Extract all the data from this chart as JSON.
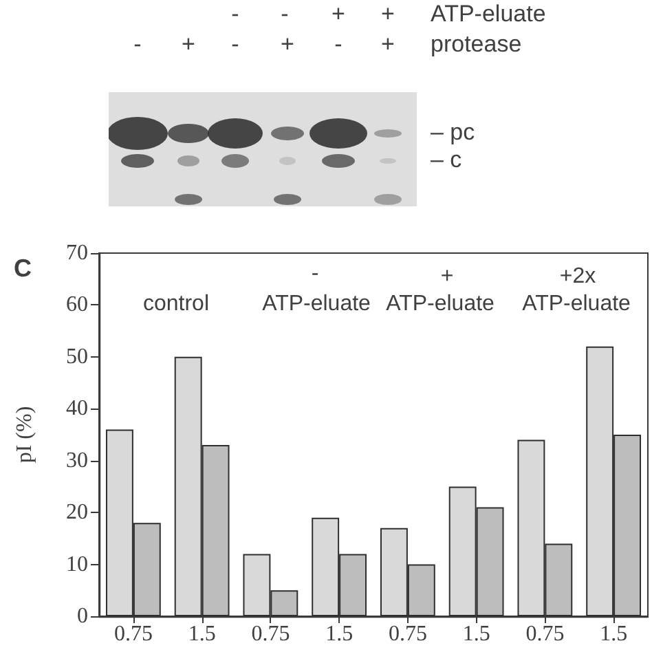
{
  "chart_data": {
    "type": "bar",
    "ylabel": "pI (%)",
    "categories": [
      "0.75",
      "1.5",
      "0.75",
      "1.5",
      "0.75",
      "1.5",
      "0.75",
      "1.5"
    ],
    "series": [
      {
        "color": "#d9d9d9",
        "values": [
          36,
          50,
          12,
          19,
          17,
          25,
          34,
          52
        ]
      },
      {
        "color": "#bdbdbd",
        "values": [
          18,
          33,
          5,
          12,
          10,
          21,
          14,
          35
        ]
      }
    ],
    "ylim": [
      0,
      70
    ],
    "yticks": [
      0,
      10,
      20,
      30,
      40,
      50,
      60,
      70
    ],
    "annotations": [
      "C",
      "control",
      "-",
      "ATP-eluate",
      "+",
      "ATP-eluate",
      "+2x",
      "ATP-eluate",
      "-",
      "-",
      "+",
      "+",
      "ATP-eluate",
      "-",
      "+",
      "-",
      "+",
      "-",
      "+",
      "protease",
      "– pc",
      "– c"
    ]
  }
}
